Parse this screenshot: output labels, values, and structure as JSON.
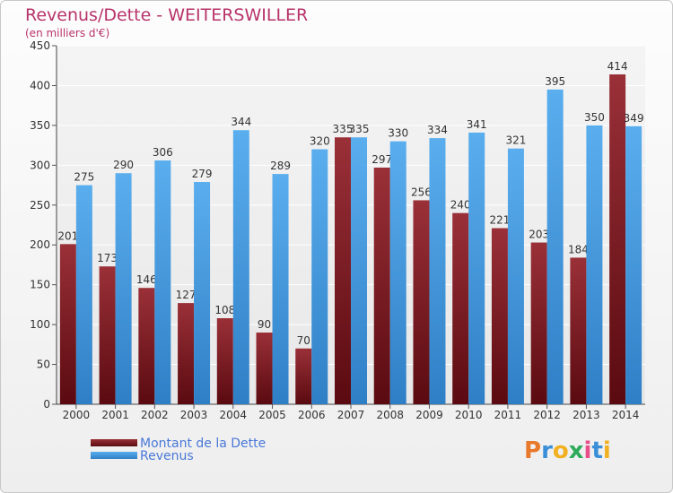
{
  "header": {
    "title": "Revenus/Dette - WEITERSWILLER",
    "subtitle": "(en milliers d'€)"
  },
  "chart_data": {
    "type": "bar",
    "title": "Revenus/Dette - WEITERSWILLER",
    "subtitle": "(en milliers d'€)",
    "categories": [
      "2000",
      "2001",
      "2002",
      "2003",
      "2004",
      "2005",
      "2006",
      "2007",
      "2008",
      "2009",
      "2010",
      "2011",
      "2012",
      "2013",
      "2014"
    ],
    "series": [
      {
        "name": "Montant de la Dette",
        "values": [
          201,
          173,
          146,
          127,
          108,
          90,
          70,
          335,
          297,
          256,
          240,
          221,
          203,
          184,
          414
        ],
        "color": "#8b2530"
      },
      {
        "name": "Revenus",
        "values": [
          275,
          290,
          306,
          279,
          344,
          289,
          320,
          335,
          330,
          334,
          341,
          321,
          395,
          350,
          349
        ],
        "color": "#4ea3e6"
      }
    ],
    "ylim": [
      0,
      450
    ],
    "yticks": [
      0,
      50,
      100,
      150,
      200,
      250,
      300,
      350,
      400,
      450
    ],
    "grid": true,
    "legend": "bottom-left"
  },
  "legend": {
    "items": [
      {
        "label": "Montant de la Dette",
        "color": "#8b2530"
      },
      {
        "label": "Revenus",
        "color": "#4ea3e6"
      }
    ]
  },
  "logo": {
    "text": "Proxiti",
    "colors": [
      "#e8782a",
      "#3a8fd8",
      "#f0b020",
      "#2eab5a",
      "#e84e8a",
      "#3a8fd8",
      "#f0b020"
    ]
  }
}
